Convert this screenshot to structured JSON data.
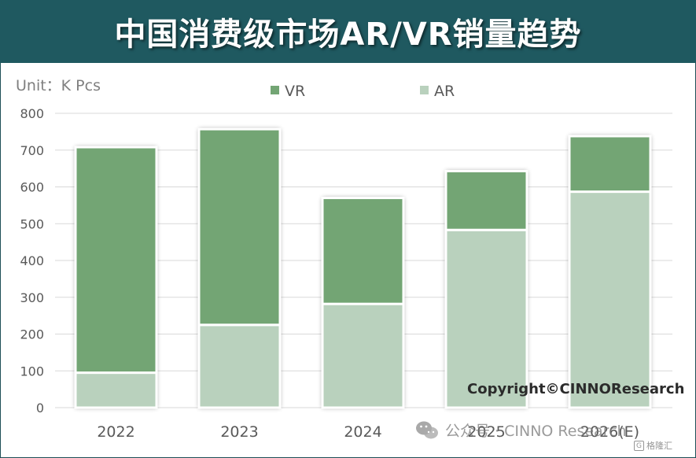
{
  "title": "中国消费级市场AR/VR销量趋势",
  "colors": {
    "title_bg": "#1f5960",
    "vr": "#73a574",
    "ar": "#b9d1bd",
    "grid": "#d9d9d9",
    "axis_text": "#595959"
  },
  "chart_data": {
    "type": "bar",
    "stacked": true,
    "unit_label": "Unit：K Pcs",
    "categories": [
      "2022",
      "2023",
      "2024",
      "2025",
      "2026(E)"
    ],
    "series": [
      {
        "name": "AR",
        "values": [
          95,
          225,
          282,
          483,
          587
        ]
      },
      {
        "name": "VR",
        "values": [
          613,
          532,
          288,
          160,
          151
        ]
      }
    ],
    "ylim": [
      0,
      800
    ],
    "yticks": [
      0,
      100,
      200,
      300,
      400,
      500,
      600,
      700,
      800
    ],
    "grid": true,
    "legend": "top-center",
    "legend_order": [
      "VR",
      "AR"
    ]
  },
  "copyright": "Copyright©CINNOResearch",
  "watermark": {
    "icon": "wechat-icon",
    "text": "公众号 · CINNO Research"
  },
  "badge": {
    "icon": "gelonghui-icon",
    "text": "格隆汇"
  }
}
